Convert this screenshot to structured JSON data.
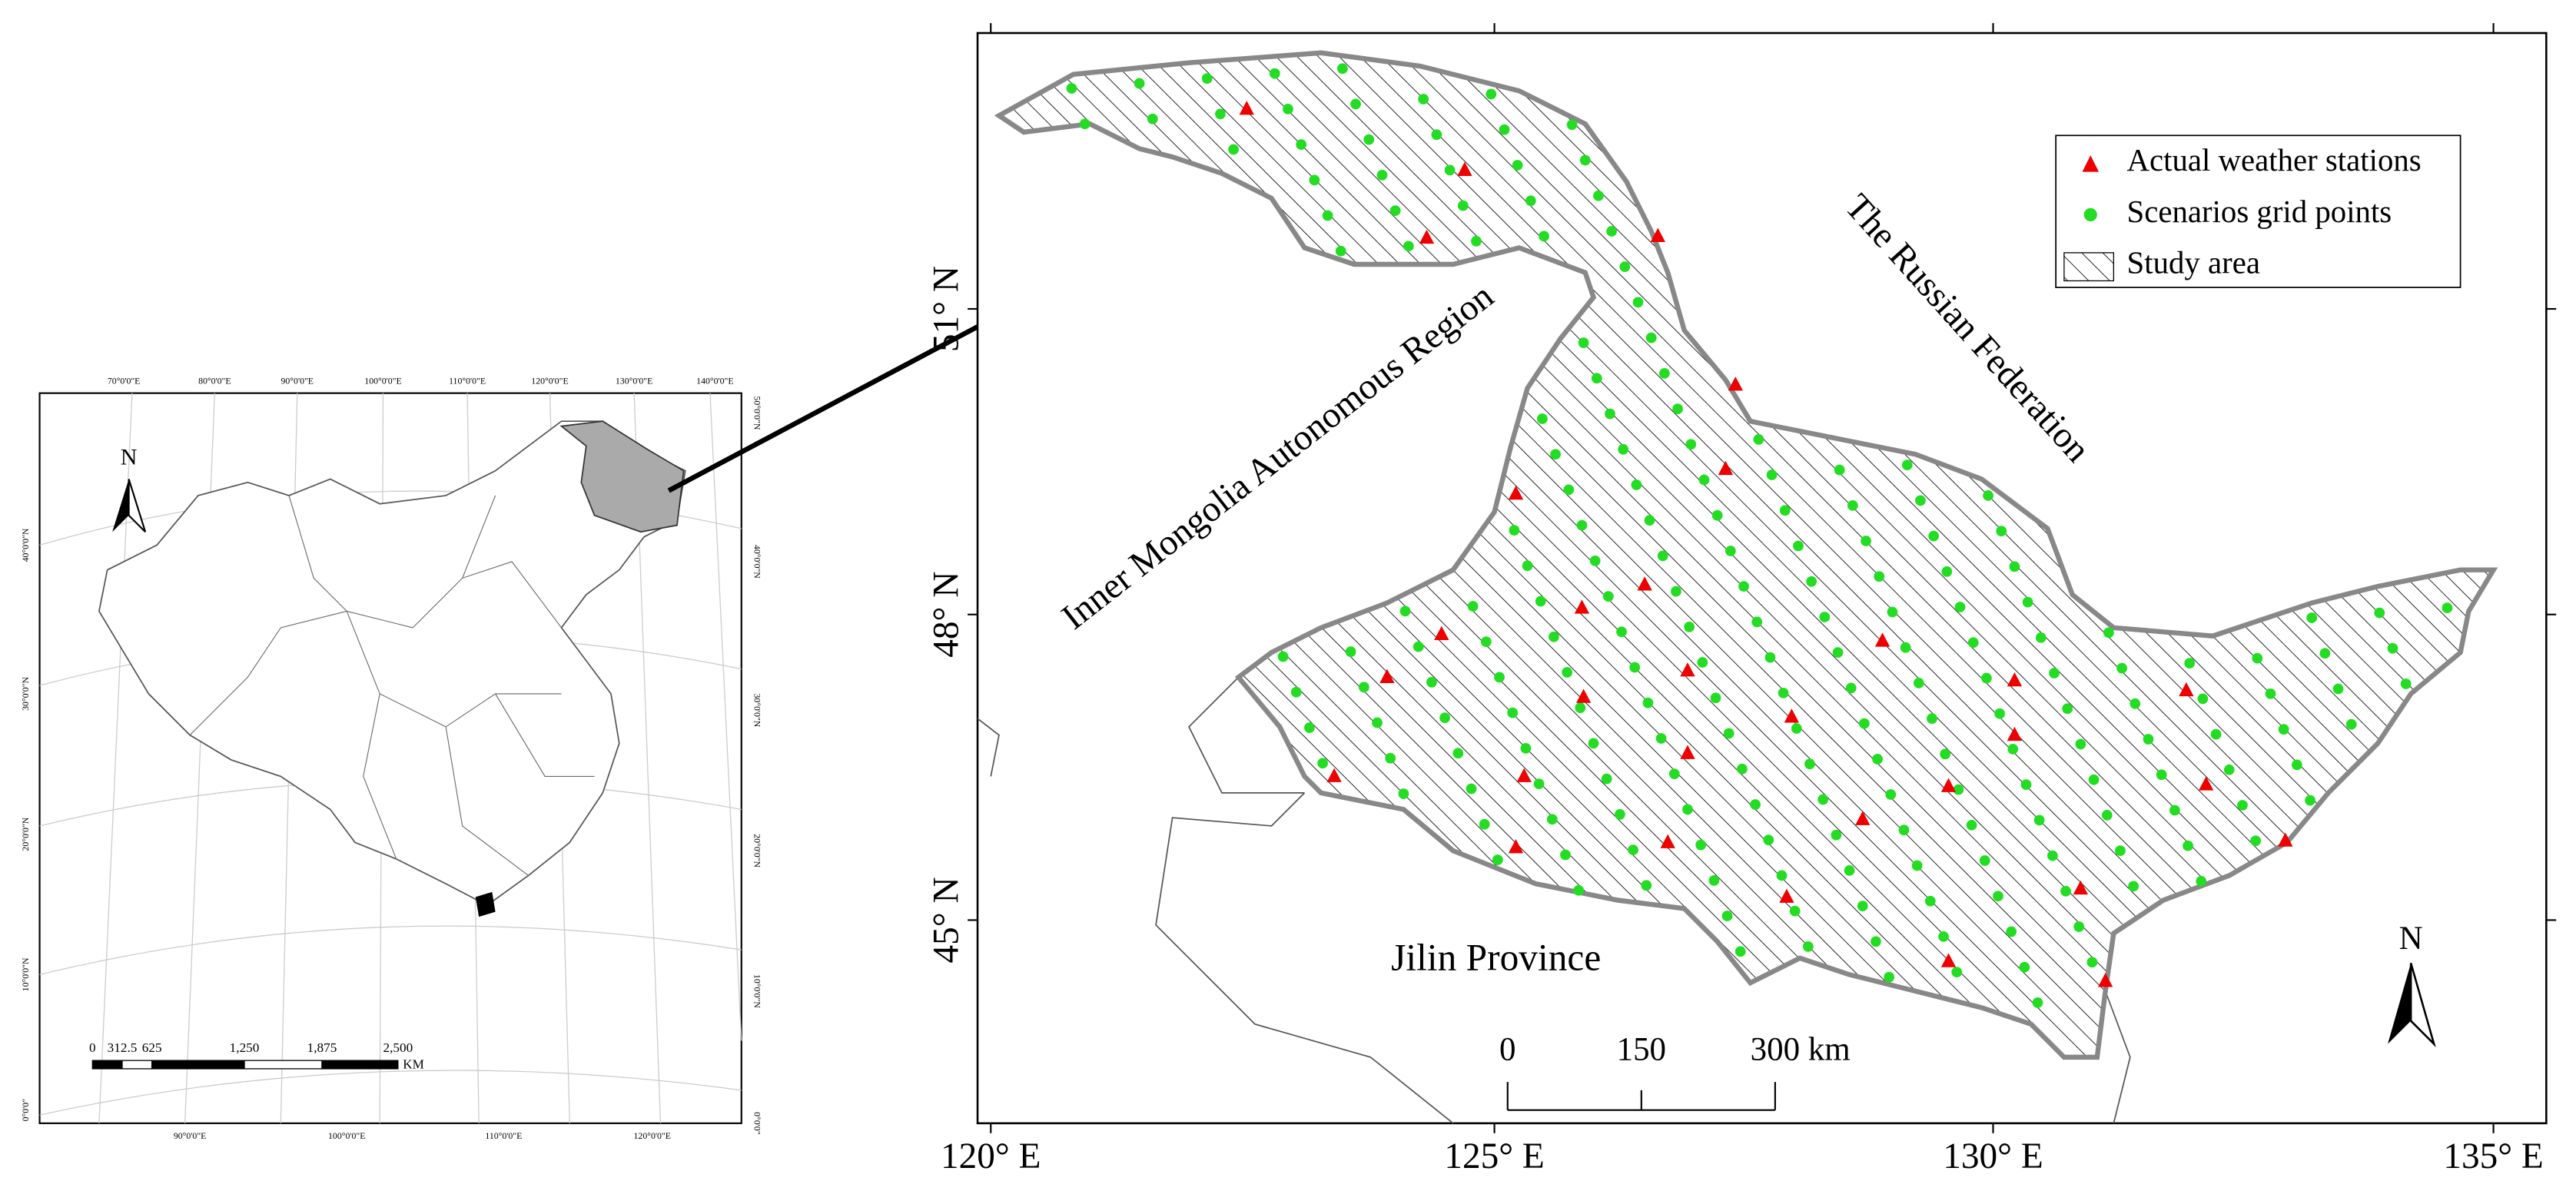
{
  "main_map": {
    "x_labels": [
      "120° E",
      "125° E",
      "130° E",
      "135° E"
    ],
    "y_labels": [
      "51° N",
      "48° N",
      "45° N"
    ],
    "legend": [
      "Actual weather stations",
      "Scenarios grid points",
      "Study area"
    ],
    "regions": [
      "The Russian Federation",
      "Inner Mongolia Autonomous Region",
      "Jilin Province"
    ],
    "north": "N",
    "scale": [
      "0",
      "150",
      "300 km"
    ]
  },
  "inset": {
    "top_labels": [
      "70°0'0\"E",
      "80°0'0\"E",
      "90°0'0\"E",
      "100°0'0\"E",
      "110°0'0\"E",
      "120°0'0\"E",
      "130°0'0\"E",
      "140°0'0\"E"
    ],
    "bottom_labels": [
      "90°0'0\"E",
      "100°0'0\"E",
      "110°0'0\"E",
      "120°0'0\"E"
    ],
    "right_labels": [
      "50°0'0\"N",
      "40°0'0\"N",
      "30°0'0\"N",
      "20°0'0\"N",
      "10°0'0\"N",
      "0°0'0\""
    ],
    "left_labels": [
      "40°0'0\"N",
      "30°0'0\"N",
      "20°0'0\"N",
      "10°0'0\"N",
      "0°0'0\""
    ],
    "scale_labels": [
      "0",
      "312.5",
      "625",
      "1,250",
      "1,875",
      "2,500"
    ],
    "scale_unit": "KM",
    "north": "N"
  }
}
